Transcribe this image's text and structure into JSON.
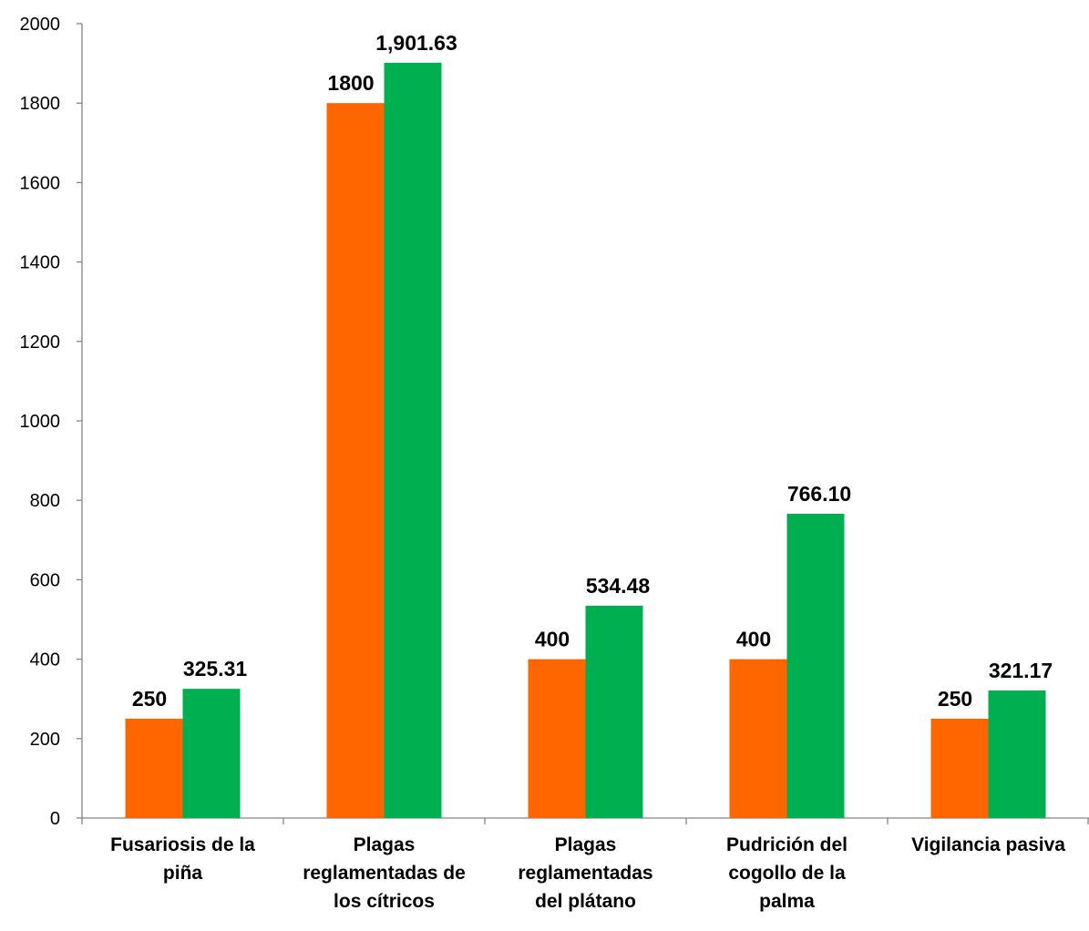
{
  "chart_data": {
    "type": "bar",
    "categories": [
      [
        "Fusariosis de la",
        "piña"
      ],
      [
        "Plagas",
        "reglamentadas de",
        "los cítricos"
      ],
      [
        "Plagas",
        "reglamentadas",
        "del plátano"
      ],
      [
        "Pudrición del",
        "cogollo de la",
        "palma"
      ],
      [
        "Vigilancia pasiva"
      ]
    ],
    "series": [
      {
        "color": "#FF6600",
        "values": [
          250,
          1800,
          400,
          400,
          250
        ],
        "labels": [
          "250",
          "1800",
          "400",
          "400",
          "250"
        ]
      },
      {
        "color": "#00B050",
        "values": [
          325.31,
          1901.63,
          534.48,
          766.1,
          321.17
        ],
        "labels": [
          "325.31",
          "1,901.63",
          "534.48",
          "766.10",
          "321.17"
        ]
      }
    ],
    "ylim": [
      0,
      2000
    ],
    "yticks": [
      0,
      200,
      400,
      600,
      800,
      1000,
      1200,
      1400,
      1600,
      1800,
      2000
    ],
    "grid": false,
    "legend": "none",
    "title": "",
    "xlabel": "",
    "ylabel": ""
  }
}
